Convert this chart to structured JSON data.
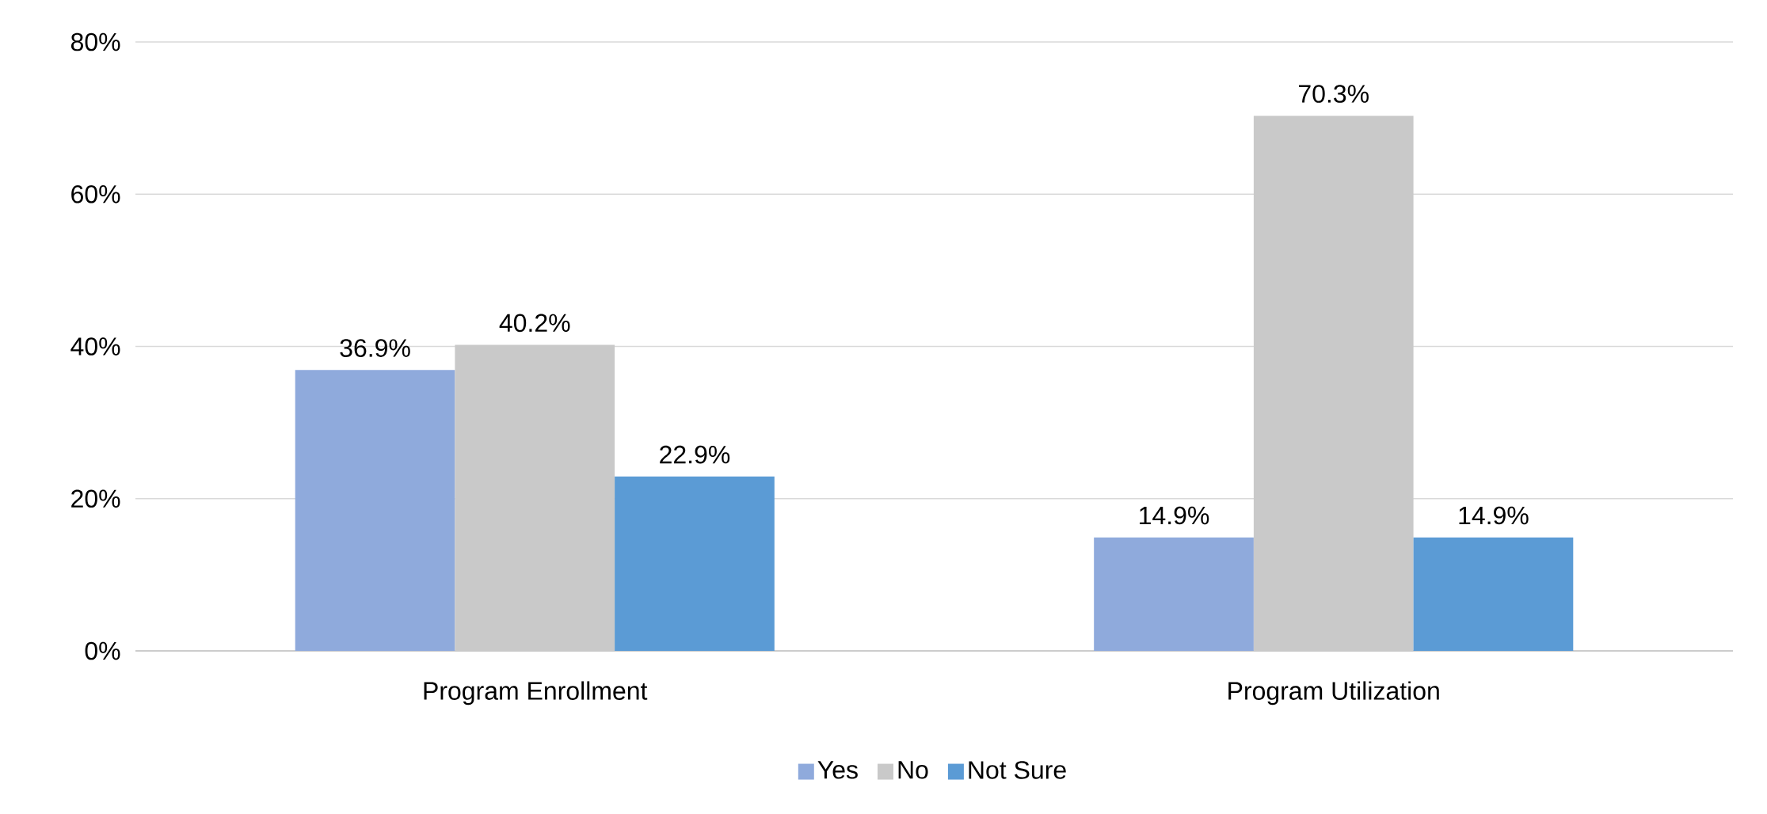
{
  "chart_data": {
    "type": "bar",
    "categories": [
      "Program Enrollment",
      "Program Utilization"
    ],
    "series": [
      {
        "name": "Yes",
        "color": "#8faadc",
        "values": [
          36.9,
          14.9
        ],
        "value_labels": [
          "36.9%",
          "14.9%"
        ]
      },
      {
        "name": "No",
        "color": "#c9c9c9",
        "values": [
          40.2,
          70.3
        ],
        "value_labels": [
          "40.2%",
          "70.3%"
        ]
      },
      {
        "name": "Not Sure",
        "color": "#5b9bd5",
        "values": [
          22.9,
          14.9
        ],
        "value_labels": [
          "22.9%",
          "14.9%"
        ]
      }
    ],
    "ylim": [
      0,
      80
    ],
    "yticks": [
      {
        "value": 0,
        "label": "0%"
      },
      {
        "value": 20,
        "label": "20%"
      },
      {
        "value": 40,
        "label": "40%"
      },
      {
        "value": 60,
        "label": "60%"
      },
      {
        "value": 80,
        "label": "80%"
      }
    ],
    "grid": "y",
    "legend": "bottom"
  }
}
